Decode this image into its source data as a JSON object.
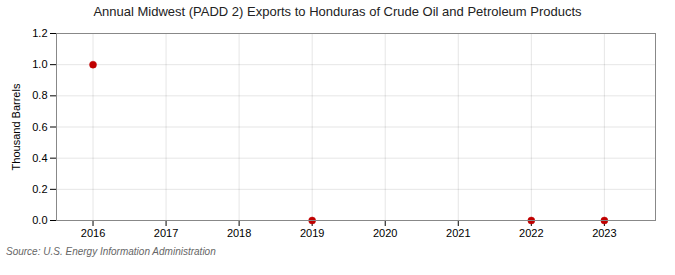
{
  "chart_data": {
    "type": "scatter",
    "title": "Annual Midwest (PADD 2) Exports to Honduras of Crude Oil and Petroleum Products",
    "ylabel": "Thousand Barrels",
    "source": "Source: U.S. Energy Information Administration",
    "x": [
      2016,
      2019,
      2022,
      2023
    ],
    "values": [
      1.0,
      0.0,
      0.0,
      0.0
    ],
    "color": "#c00000",
    "marker": "circle",
    "xlim": [
      2015.5,
      2023.7
    ],
    "xticks": [
      2016,
      2017,
      2018,
      2019,
      2020,
      2021,
      2022,
      2023
    ],
    "ylim": [
      0.0,
      1.2
    ],
    "yticks": [
      {
        "value": 0.0,
        "label": "0.0"
      },
      0.2,
      0.4,
      0.6,
      0.8,
      {
        "value": 1.0,
        "label": "1.0"
      },
      1.2
    ],
    "grid": true
  }
}
